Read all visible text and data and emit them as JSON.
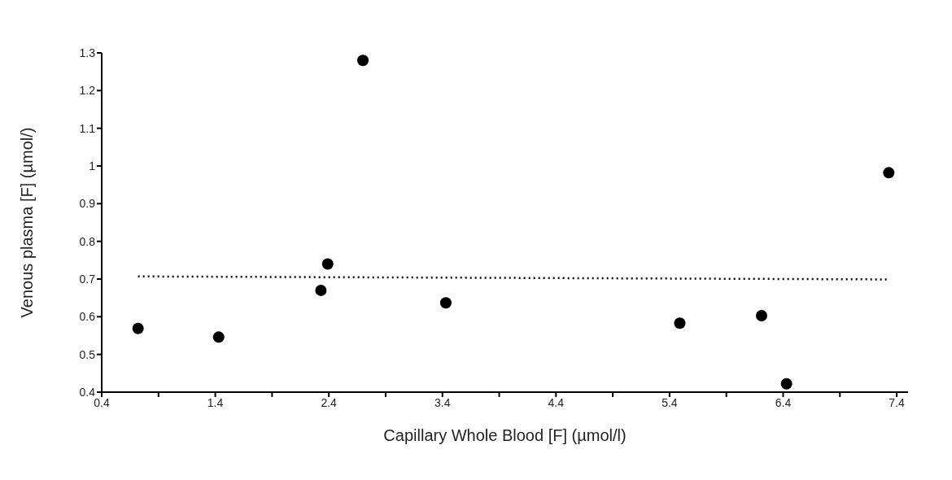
{
  "chart_data": {
    "type": "scatter",
    "xlabel": "Capillary Whole Blood [F] (µmol/l)",
    "ylabel": "Venous plasma [F] (µmol/)",
    "xlim": [
      0.4,
      7.5
    ],
    "xticks": [
      0.4,
      {
        "value": 0.9,
        "label": null
      },
      1.4,
      {
        "value": 1.9,
        "label": null
      },
      2.4,
      {
        "value": 2.9,
        "label": null
      },
      3.4,
      {
        "value": 3.9,
        "label": null
      },
      4.4,
      {
        "value": 4.9,
        "label": null
      },
      5.4,
      {
        "value": 5.9,
        "label": null
      },
      6.4,
      {
        "value": 6.9,
        "label": null
      },
      7.4
    ],
    "ylim": [
      0.4,
      1.3
    ],
    "yticks": [
      0.4,
      0.5,
      0.6,
      0.7,
      0.8,
      0.9,
      {
        "value": 1,
        "label": "1"
      },
      1.1,
      1.2,
      1.3
    ],
    "grid": false,
    "marker": "circle",
    "series": [
      {
        "color": "#000000",
        "x": [
          0.72,
          1.43,
          2.33,
          2.39,
          2.7,
          3.43,
          5.49,
          6.21,
          6.43,
          7.33
        ],
        "values": [
          0.569,
          0.546,
          0.67,
          0.74,
          1.28,
          0.637,
          0.583,
          0.603,
          0.422,
          0.982
        ]
      },
      {
        "type": "line",
        "color": "#000000",
        "line_style": "dotted",
        "marker": "none",
        "x": [
          0.72,
          7.33
        ],
        "values": [
          0.707,
          0.699
        ]
      }
    ]
  }
}
